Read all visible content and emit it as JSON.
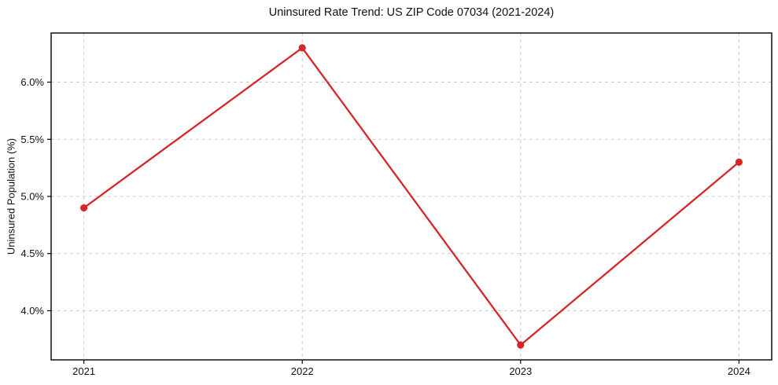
{
  "chart_data": {
    "type": "line",
    "title": "Uninsured Rate Trend: US ZIP Code 07034 (2021-2024)",
    "xlabel": "",
    "ylabel": "Uninsured Population (%)",
    "x": [
      2021,
      2022,
      2023,
      2024
    ],
    "x_tick_labels": [
      "2021",
      "2022",
      "2023",
      "2024"
    ],
    "series": [
      {
        "name": "Uninsured rate",
        "values": [
          4.9,
          6.3,
          3.7,
          5.3
        ]
      }
    ],
    "y_ticks": [
      4.0,
      4.5,
      5.0,
      5.5,
      6.0
    ],
    "y_tick_labels": [
      "4.0%",
      "4.5%",
      "5.0%",
      "5.5%",
      "6.0%"
    ],
    "xlim": [
      2020.85,
      2024.15
    ],
    "ylim": [
      3.57,
      6.43
    ],
    "grid": true,
    "grid_style": "dashed",
    "legend": false,
    "colors": {
      "line": "#d62728",
      "marker": "#d62728",
      "grid": "#cccccc",
      "spine": "#000000",
      "background": "#ffffff"
    }
  }
}
